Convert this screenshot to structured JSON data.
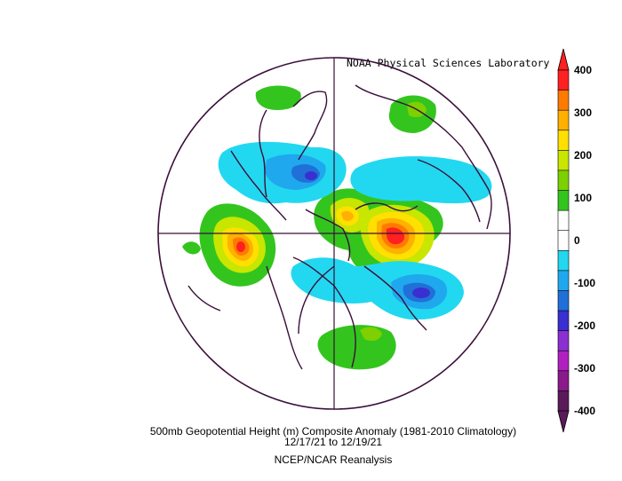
{
  "credit": "NOAA Physical Sciences Laboratory",
  "caption": {
    "line1": "500mb Geopotential Height (m) Composite Anomaly (1981-2010 Climatology)",
    "line2": "12/17/21   to 12/19/21",
    "line3": "NCEP/NCAR Reanalysis"
  },
  "colorbar": {
    "ticks": [
      "400",
      "300",
      "200",
      "100",
      "0",
      "-100",
      "-200",
      "-300",
      "-400"
    ],
    "colors": [
      "#ff2020",
      "#ff7a00",
      "#ffb000",
      "#ffe000",
      "#c8e600",
      "#7ed000",
      "#33c51e",
      "#ffffff",
      "#ffffff",
      "#22d8f0",
      "#20a8ee",
      "#2070d8",
      "#3a2fd0",
      "#8a2fd0",
      "#b020c0",
      "#8a1a8a",
      "#5a1a5a"
    ]
  },
  "anomalies": [
    {
      "name": "positive-anomaly-north-pacific",
      "sign": "positive",
      "peak": 400
    },
    {
      "name": "positive-anomaly-north-atlantic",
      "sign": "positive",
      "peak": 400
    },
    {
      "name": "positive-anomaly-arctic",
      "sign": "positive",
      "peak": 250
    },
    {
      "name": "positive-anomaly-europe",
      "sign": "positive",
      "peak": 100
    },
    {
      "name": "positive-anomaly-asia",
      "sign": "positive",
      "peak": 100
    },
    {
      "name": "positive-anomaly-north-america-south",
      "sign": "positive",
      "peak": 100
    },
    {
      "name": "negative-anomaly-siberia",
      "sign": "negative",
      "peak": -200
    },
    {
      "name": "negative-anomaly-eastern-canada",
      "sign": "negative",
      "peak": -200
    },
    {
      "name": "negative-anomaly-west-asia",
      "sign": "negative",
      "peak": -100
    }
  ]
}
